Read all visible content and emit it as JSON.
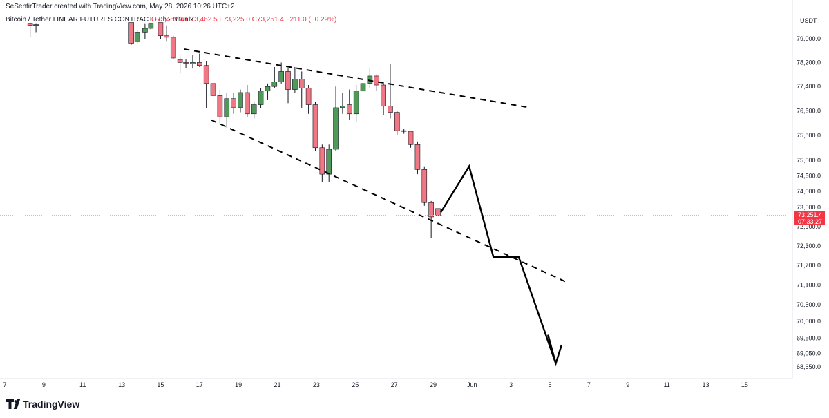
{
  "header": {
    "created_by": "SeSentirTrader created with TradingView.com, May 28, 2026 10:26 UTC+2",
    "symbol_desc": "Bitcoin / Tether LINEAR FUTURES CONTRACT · 8h · Bitunix",
    "ohlc": "O73,462.4  H73,462.5  L73,225.0  C73,251.4  −211.0 (−0.29%)"
  },
  "price_axis": {
    "currency": "USDT",
    "labels": [
      "79,000.0",
      "78,200.0",
      "77,400.0",
      "76,600.0",
      "75,800.0",
      "75,000.0",
      "74,500.0",
      "74,000.0",
      "73,500.0",
      "72,900.0",
      "72,300.0",
      "71,700.0",
      "71,100.0",
      "70,500.0",
      "70,000.0",
      "69,500.0",
      "69,050.0",
      "68,650.0"
    ],
    "last_price_label": "73,251.4",
    "countdown_label": "07:33:27",
    "last_price": 73251.4
  },
  "time_axis": {
    "labels": [
      "7",
      "9",
      "11",
      "13",
      "15",
      "17",
      "19",
      "21",
      "23",
      "25",
      "27",
      "29",
      "Jun",
      "3",
      "5",
      "7",
      "9",
      "11",
      "13",
      "15"
    ]
  },
  "branding": {
    "logo_text": "TradingView"
  },
  "colors": {
    "up": "#4f9a59",
    "down": "#f07884",
    "line": "#000000",
    "price_tag": "#f23645",
    "last_price_dotted": "#f7a8b0"
  },
  "chart_data": {
    "type": "candlestick",
    "title": "Bitcoin / Tether LINEAR FUTURES CONTRACT · 8h · Bitunix",
    "ylim": [
      68500,
      79600
    ],
    "ylog": true,
    "candles": [
      {
        "t": 8.3,
        "o": 79500,
        "h": 79550,
        "l": 79050,
        "c": 79450
      },
      {
        "t": 8.6,
        "o": 79450,
        "h": 79500,
        "l": 79200,
        "c": 79480
      },
      {
        "t": 13.5,
        "o": 79550,
        "h": 79550,
        "l": 78800,
        "c": 78850
      },
      {
        "t": 13.8,
        "o": 78900,
        "h": 79300,
        "l": 78850,
        "c": 79200
      },
      {
        "t": 14.2,
        "o": 79200,
        "h": 79500,
        "l": 79000,
        "c": 79350
      },
      {
        "t": 14.5,
        "o": 79350,
        "h": 79550,
        "l": 79300,
        "c": 79500
      },
      {
        "t": 15.0,
        "o": 79550,
        "h": 79550,
        "l": 79000,
        "c": 79100
      },
      {
        "t": 15.3,
        "o": 79100,
        "h": 79450,
        "l": 78900,
        "c": 79050
      },
      {
        "t": 15.65,
        "o": 79050,
        "h": 79100,
        "l": 78300,
        "c": 78350
      },
      {
        "t": 16.0,
        "o": 78300,
        "h": 78400,
        "l": 77850,
        "c": 78200
      },
      {
        "t": 16.3,
        "o": 78200,
        "h": 78300,
        "l": 78000,
        "c": 78180
      },
      {
        "t": 16.65,
        "o": 78150,
        "h": 78450,
        "l": 78000,
        "c": 78200
      },
      {
        "t": 17.0,
        "o": 78200,
        "h": 78500,
        "l": 78050,
        "c": 78100
      },
      {
        "t": 17.35,
        "o": 78100,
        "h": 78250,
        "l": 76700,
        "c": 77500
      },
      {
        "t": 17.7,
        "o": 77500,
        "h": 77650,
        "l": 76900,
        "c": 77100
      },
      {
        "t": 18.05,
        "o": 77100,
        "h": 77300,
        "l": 76150,
        "c": 76400
      },
      {
        "t": 18.4,
        "o": 76400,
        "h": 77200,
        "l": 76050,
        "c": 77000
      },
      {
        "t": 18.75,
        "o": 77000,
        "h": 77200,
        "l": 76500,
        "c": 76700
      },
      {
        "t": 19.1,
        "o": 76700,
        "h": 77300,
        "l": 76550,
        "c": 77200
      },
      {
        "t": 19.45,
        "o": 77200,
        "h": 77450,
        "l": 76400,
        "c": 76500
      },
      {
        "t": 19.8,
        "o": 76500,
        "h": 76900,
        "l": 76350,
        "c": 76800
      },
      {
        "t": 20.15,
        "o": 76800,
        "h": 77350,
        "l": 76700,
        "c": 77250
      },
      {
        "t": 20.5,
        "o": 77250,
        "h": 77500,
        "l": 76950,
        "c": 77400
      },
      {
        "t": 20.85,
        "o": 77400,
        "h": 78050,
        "l": 77350,
        "c": 77550
      },
      {
        "t": 21.2,
        "o": 77550,
        "h": 78200,
        "l": 77500,
        "c": 77900
      },
      {
        "t": 21.55,
        "o": 77900,
        "h": 78000,
        "l": 76850,
        "c": 77300
      },
      {
        "t": 21.9,
        "o": 77300,
        "h": 78050,
        "l": 77200,
        "c": 77650
      },
      {
        "t": 22.25,
        "o": 77650,
        "h": 77900,
        "l": 76700,
        "c": 77350
      },
      {
        "t": 22.6,
        "o": 77350,
        "h": 77450,
        "l": 76500,
        "c": 76800
      },
      {
        "t": 22.95,
        "o": 76800,
        "h": 76900,
        "l": 75300,
        "c": 75400
      },
      {
        "t": 23.3,
        "o": 75400,
        "h": 75500,
        "l": 74300,
        "c": 74550
      },
      {
        "t": 23.65,
        "o": 74550,
        "h": 75500,
        "l": 74300,
        "c": 75350
      },
      {
        "t": 24.0,
        "o": 75350,
        "h": 77400,
        "l": 75300,
        "c": 76700
      },
      {
        "t": 24.35,
        "o": 76700,
        "h": 77200,
        "l": 76500,
        "c": 76750
      },
      {
        "t": 24.7,
        "o": 76800,
        "h": 77300,
        "l": 76300,
        "c": 76500
      },
      {
        "t": 25.05,
        "o": 76500,
        "h": 77450,
        "l": 76250,
        "c": 77250
      },
      {
        "t": 25.4,
        "o": 77250,
        "h": 77700,
        "l": 77150,
        "c": 77500
      },
      {
        "t": 25.75,
        "o": 77500,
        "h": 78000,
        "l": 77350,
        "c": 77750
      },
      {
        "t": 26.1,
        "o": 77750,
        "h": 77800,
        "l": 77250,
        "c": 77450
      },
      {
        "t": 26.45,
        "o": 77450,
        "h": 77550,
        "l": 76450,
        "c": 76750
      },
      {
        "t": 26.8,
        "o": 76750,
        "h": 78150,
        "l": 76350,
        "c": 76550
      },
      {
        "t": 27.15,
        "o": 76550,
        "h": 76600,
        "l": 75800,
        "c": 75950
      },
      {
        "t": 27.5,
        "o": 75950,
        "h": 76000,
        "l": 75850,
        "c": 75930
      },
      {
        "t": 27.85,
        "o": 75930,
        "h": 75950,
        "l": 75400,
        "c": 75500
      },
      {
        "t": 28.2,
        "o": 75500,
        "h": 75600,
        "l": 74550,
        "c": 74700
      },
      {
        "t": 28.55,
        "o": 74700,
        "h": 74800,
        "l": 73550,
        "c": 73650
      },
      {
        "t": 28.9,
        "o": 73650,
        "h": 73700,
        "l": 72550,
        "c": 73200
      },
      {
        "t": 29.25,
        "o": 73462.4,
        "h": 73462.5,
        "l": 73225.0,
        "c": 73251.4
      }
    ],
    "trendlines": [
      {
        "name": "upper-wedge-line",
        "style": "dashed",
        "points": [
          [
            16.2,
            78650
          ],
          [
            34.0,
            76700
          ]
        ]
      },
      {
        "name": "lower-wedge-line",
        "style": "dashed",
        "points": [
          [
            17.6,
            76300
          ],
          [
            35.8,
            71200
          ]
        ]
      }
    ],
    "projection": {
      "style": "solid",
      "points": [
        [
          29.4,
          73350
        ],
        [
          30.85,
          74800
        ],
        [
          32.1,
          71950
        ],
        [
          33.4,
          71950
        ],
        [
          35.3,
          68750
        ]
      ],
      "arrow_head": [
        [
          34.9,
          69600
        ],
        [
          35.3,
          68750
        ],
        [
          35.6,
          69300
        ]
      ]
    }
  }
}
